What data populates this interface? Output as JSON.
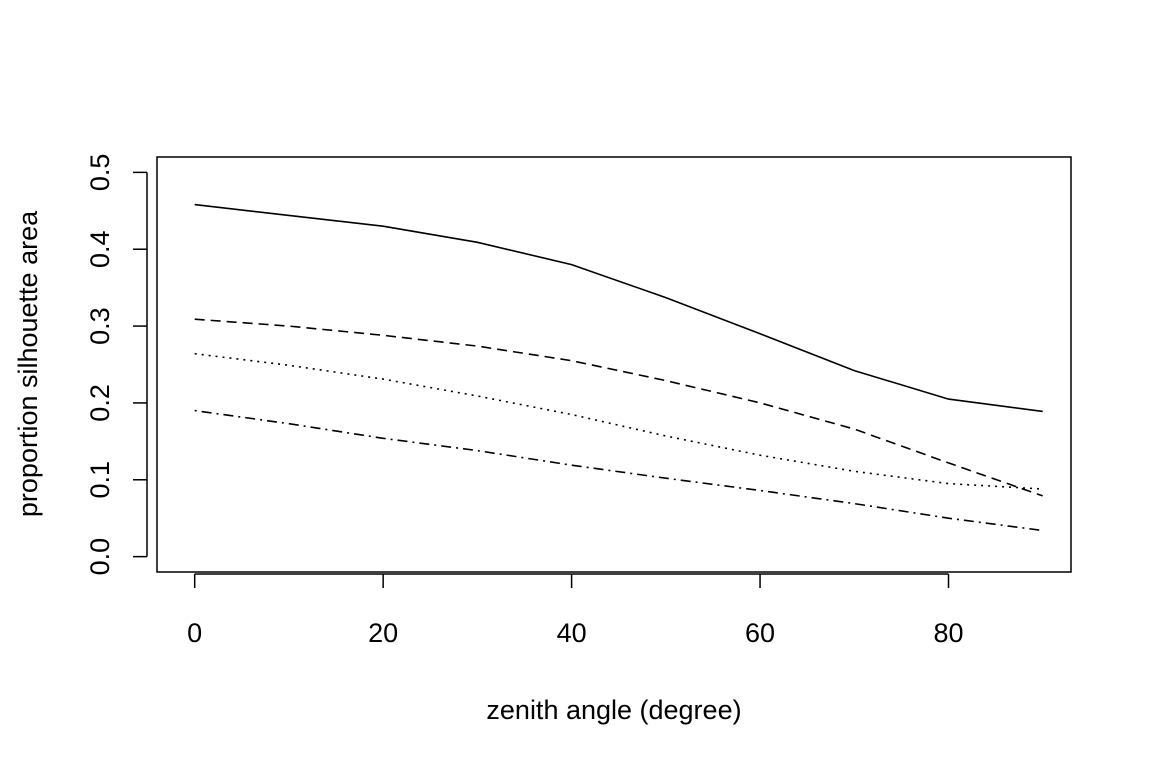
{
  "chart_data": {
    "type": "line",
    "title": "",
    "xlabel": "zenith angle (degree)",
    "ylabel": "proportion silhouette area",
    "xlim": [
      -4,
      93
    ],
    "ylim": [
      -0.02,
      0.52
    ],
    "x_ticks": [
      0,
      20,
      40,
      60,
      80
    ],
    "y_ticks": [
      0.0,
      0.1,
      0.2,
      0.3,
      0.4,
      0.5
    ],
    "x_tick_labels": [
      "0",
      "20",
      "40",
      "60",
      "80"
    ],
    "y_tick_labels": [
      "0.0",
      "0.1",
      "0.2",
      "0.3",
      "0.4",
      "0.5"
    ],
    "grid": false,
    "legend": "none",
    "x": [
      0,
      10,
      20,
      30,
      40,
      50,
      60,
      70,
      80,
      90
    ],
    "series": [
      {
        "line_style": "solid",
        "values": [
          0.458,
          0.444,
          0.43,
          0.409,
          0.38,
          0.337,
          0.29,
          0.242,
          0.205,
          0.189
        ]
      },
      {
        "line_style": "dashed",
        "values": [
          0.309,
          0.3,
          0.288,
          0.274,
          0.255,
          0.229,
          0.2,
          0.166,
          0.122,
          0.079
        ]
      },
      {
        "line_style": "dotted",
        "values": [
          0.264,
          0.249,
          0.231,
          0.209,
          0.185,
          0.157,
          0.132,
          0.111,
          0.095,
          0.088
        ]
      },
      {
        "line_style": "dotdash",
        "values": [
          0.19,
          0.173,
          0.154,
          0.138,
          0.119,
          0.102,
          0.086,
          0.069,
          0.05,
          0.034
        ]
      }
    ],
    "colors": {
      "line": "#000000",
      "axis": "#000000",
      "background": "#ffffff"
    }
  }
}
